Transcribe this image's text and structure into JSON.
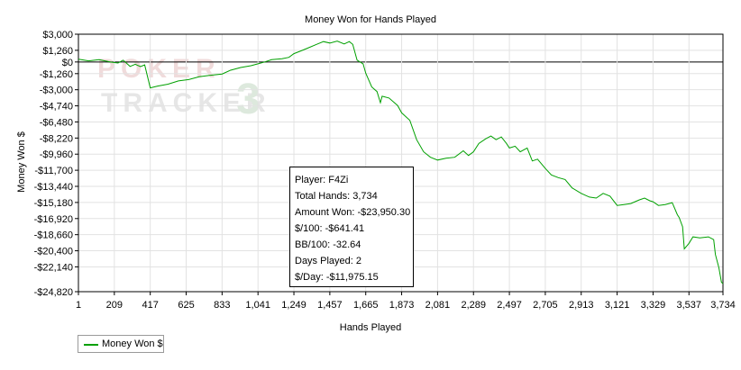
{
  "chart_data": {
    "type": "line",
    "title": "Money Won for Hands Played",
    "xlabel": "Hands Played",
    "ylabel": "Money Won $",
    "xlim": [
      1,
      3734
    ],
    "ylim": [
      -24820,
      3000
    ],
    "x_ticks": [
      "1",
      "209",
      "417",
      "625",
      "833",
      "1,041",
      "1,249",
      "1,457",
      "1,665",
      "1,873",
      "2,081",
      "2,289",
      "2,497",
      "2,705",
      "2,913",
      "3,121",
      "3,329",
      "3,537",
      "3,734"
    ],
    "y_ticks": [
      3000,
      1260,
      0,
      -1260,
      -3000,
      -4740,
      -6480,
      -8220,
      -9960,
      -11700,
      -13440,
      -15180,
      -16920,
      -18660,
      -20400,
      -22140,
      -24820
    ],
    "y_tick_labels": [
      "$3,000",
      "$1,260",
      "$0",
      "-$1,260",
      "-$3,000",
      "-$4,740",
      "-$6,480",
      "-$8,220",
      "-$9,960",
      "-$11,700",
      "-$13,440",
      "-$15,180",
      "-$16,920",
      "-$18,660",
      "-$20,400",
      "-$22,140",
      "-$24,820"
    ],
    "grid": true,
    "legend": "bottom-left",
    "series": [
      {
        "name": "Money Won $",
        "color": "#00a000",
        "points": [
          [
            1,
            300
          ],
          [
            60,
            120
          ],
          [
            120,
            250
          ],
          [
            190,
            -20
          ],
          [
            230,
            -110
          ],
          [
            260,
            200
          ],
          [
            300,
            -480
          ],
          [
            330,
            -250
          ],
          [
            360,
            -500
          ],
          [
            385,
            -320
          ],
          [
            417,
            -2800
          ],
          [
            460,
            -2600
          ],
          [
            520,
            -2400
          ],
          [
            580,
            -2050
          ],
          [
            640,
            -1900
          ],
          [
            700,
            -1600
          ],
          [
            760,
            -1450
          ],
          [
            833,
            -1300
          ],
          [
            880,
            -900
          ],
          [
            940,
            -600
          ],
          [
            1000,
            -400
          ],
          [
            1041,
            -200
          ],
          [
            1080,
            0
          ],
          [
            1120,
            250
          ],
          [
            1180,
            350
          ],
          [
            1220,
            500
          ],
          [
            1249,
            900
          ],
          [
            1290,
            1200
          ],
          [
            1330,
            1500
          ],
          [
            1380,
            1900
          ],
          [
            1420,
            2200
          ],
          [
            1457,
            2050
          ],
          [
            1500,
            2250
          ],
          [
            1540,
            1950
          ],
          [
            1570,
            2200
          ],
          [
            1590,
            1900
          ],
          [
            1615,
            200
          ],
          [
            1650,
            -200
          ],
          [
            1665,
            -1200
          ],
          [
            1700,
            -2700
          ],
          [
            1730,
            -3200
          ],
          [
            1750,
            -4400
          ],
          [
            1760,
            -3700
          ],
          [
            1800,
            -3900
          ],
          [
            1850,
            -4700
          ],
          [
            1873,
            -5500
          ],
          [
            1920,
            -6300
          ],
          [
            1960,
            -8400
          ],
          [
            2000,
            -9700
          ],
          [
            2040,
            -10300
          ],
          [
            2081,
            -10600
          ],
          [
            2130,
            -10400
          ],
          [
            2180,
            -10300
          ],
          [
            2230,
            -9600
          ],
          [
            2260,
            -10100
          ],
          [
            2289,
            -9700
          ],
          [
            2320,
            -8800
          ],
          [
            2360,
            -8300
          ],
          [
            2390,
            -8000
          ],
          [
            2420,
            -8400
          ],
          [
            2450,
            -8100
          ],
          [
            2480,
            -8800
          ],
          [
            2497,
            -9300
          ],
          [
            2530,
            -9100
          ],
          [
            2560,
            -9700
          ],
          [
            2600,
            -9300
          ],
          [
            2630,
            -10700
          ],
          [
            2660,
            -10500
          ],
          [
            2705,
            -11500
          ],
          [
            2740,
            -12200
          ],
          [
            2780,
            -12500
          ],
          [
            2820,
            -12700
          ],
          [
            2860,
            -13600
          ],
          [
            2913,
            -14200
          ],
          [
            2960,
            -14600
          ],
          [
            3000,
            -14700
          ],
          [
            3040,
            -14200
          ],
          [
            3080,
            -14500
          ],
          [
            3121,
            -15500
          ],
          [
            3160,
            -15400
          ],
          [
            3200,
            -15300
          ],
          [
            3250,
            -14900
          ],
          [
            3280,
            -14700
          ],
          [
            3310,
            -15000
          ],
          [
            3329,
            -15100
          ],
          [
            3360,
            -15500
          ],
          [
            3400,
            -15400
          ],
          [
            3440,
            -15200
          ],
          [
            3470,
            -16500
          ],
          [
            3480,
            -16800
          ],
          [
            3500,
            -17800
          ],
          [
            3510,
            -20200
          ],
          [
            3537,
            -19600
          ],
          [
            3560,
            -18900
          ],
          [
            3600,
            -19000
          ],
          [
            3650,
            -18900
          ],
          [
            3680,
            -19200
          ],
          [
            3690,
            -20800
          ],
          [
            3710,
            -22200
          ],
          [
            3725,
            -23800
          ],
          [
            3734,
            -23950
          ]
        ]
      }
    ],
    "info_box": [
      "Player: F4Zi",
      "Total Hands: 3,734",
      "Amount Won: -$23,950.30",
      "$/100: -$641.41",
      "BB/100: -32.64",
      "Days Played: 2",
      "$/Day: -$11,975.15"
    ],
    "watermark": [
      "POKER",
      "TRACKER",
      "3"
    ]
  }
}
